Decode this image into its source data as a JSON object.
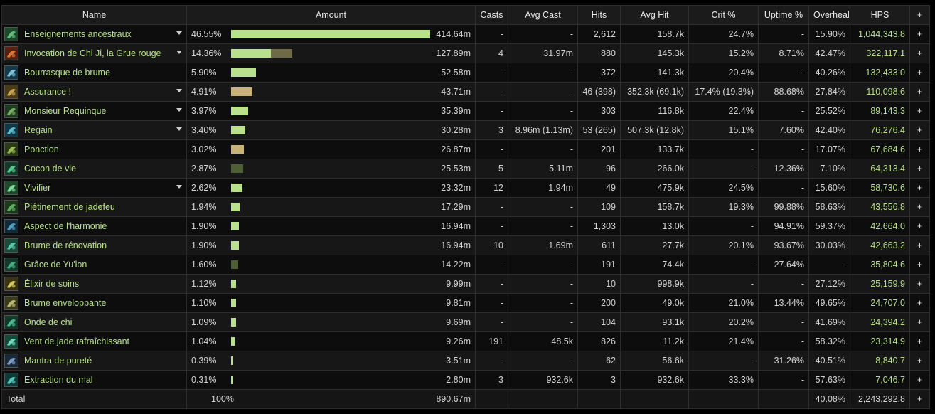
{
  "headers": {
    "name": "Name",
    "amount": "Amount",
    "casts": "Casts",
    "avg_cast": "Avg Cast",
    "hits": "Hits",
    "avg_hit": "Avg Hit",
    "crit": "Crit %",
    "uptime": "Uptime %",
    "overheal": "Overheal",
    "hps": "HPS",
    "plus": "+"
  },
  "colors": {
    "bar_green": "#b9e08c",
    "bar_tan": "#c8b27a",
    "bar_dark": "#4e5f36",
    "bar_olive": "#6f6a46",
    "spell_text": "#b6e08a"
  },
  "rows": [
    {
      "name": "Enseignements ancestraux",
      "icon": "spell-icon-ancestral-teachings",
      "expand": true,
      "pct": "46.55%",
      "bar_fraction": 0.4655,
      "bar_color": "bar_green",
      "bar2_fraction": 0,
      "amount": "414.64m",
      "casts": "-",
      "avg_cast": "-",
      "hits": "2,612",
      "avg_hit": "158.7k",
      "crit": "24.7%",
      "uptime": "-",
      "overheal": "15.90%",
      "hps": "1,044,343.8"
    },
    {
      "name": "Invocation de Chi Ji, la Grue rouge",
      "icon": "spell-icon-chi-ji",
      "expand": true,
      "pct": "14.36%",
      "bar_fraction": 0.0935,
      "bar_color": "bar_green",
      "bar2_fraction": 0.0501,
      "amount": "127.89m",
      "casts": "4",
      "avg_cast": "31.97m",
      "hits": "880",
      "avg_hit": "145.3k",
      "crit": "15.2%",
      "uptime": "8.71%",
      "overheal": "42.47%",
      "hps": "322,117.1"
    },
    {
      "name": "Bourrasque de brume",
      "icon": "spell-icon-gust-of-mists",
      "expand": false,
      "pct": "5.90%",
      "bar_fraction": 0.059,
      "bar_color": "bar_green",
      "bar2_fraction": 0,
      "amount": "52.58m",
      "casts": "-",
      "avg_cast": "-",
      "hits": "372",
      "avg_hit": "141.3k",
      "crit": "20.4%",
      "uptime": "-",
      "overheal": "40.26%",
      "hps": "132,433.0"
    },
    {
      "name": "Assurance !",
      "icon": "spell-icon-assurance",
      "expand": true,
      "pct": "4.91%",
      "bar_fraction": 0.0491,
      "bar_color": "bar_tan",
      "bar2_fraction": 0,
      "amount": "43.71m",
      "casts": "-",
      "avg_cast": "-",
      "hits": "46 (398)",
      "avg_hit": "352.3k (69.1k)",
      "crit": "17.4% (19.3%)",
      "uptime": "88.68%",
      "overheal": "27.84%",
      "hps": "110,098.6"
    },
    {
      "name": "Monsieur Requinque",
      "icon": "spell-icon-monsieur-requinque",
      "expand": true,
      "pct": "3.97%",
      "bar_fraction": 0.0397,
      "bar_color": "bar_green",
      "bar2_fraction": 0,
      "amount": "35.39m",
      "casts": "-",
      "avg_cast": "-",
      "hits": "303",
      "avg_hit": "116.8k",
      "crit": "22.4%",
      "uptime": "-",
      "overheal": "25.52%",
      "hps": "89,143.3"
    },
    {
      "name": "Regain",
      "icon": "spell-icon-regain",
      "expand": true,
      "pct": "3.40%",
      "bar_fraction": 0.034,
      "bar_color": "bar_green",
      "bar2_fraction": 0,
      "amount": "30.28m",
      "casts": "3",
      "avg_cast": "8.96m (1.13m)",
      "hits": "53 (265)",
      "avg_hit": "507.3k (12.8k)",
      "crit": "15.1%",
      "uptime": "7.60%",
      "overheal": "42.40%",
      "hps": "76,276.4"
    },
    {
      "name": "Ponction",
      "icon": "spell-icon-ponction",
      "expand": false,
      "pct": "3.02%",
      "bar_fraction": 0.0302,
      "bar_color": "bar_tan",
      "bar2_fraction": 0,
      "amount": "26.87m",
      "casts": "-",
      "avg_cast": "-",
      "hits": "201",
      "avg_hit": "133.7k",
      "crit": "-",
      "uptime": "-",
      "overheal": "17.07%",
      "hps": "67,684.6"
    },
    {
      "name": "Cocon de vie",
      "icon": "spell-icon-life-cocoon",
      "expand": false,
      "pct": "2.87%",
      "bar_fraction": 0.0287,
      "bar_color": "bar_dark",
      "bar2_fraction": 0,
      "amount": "25.53m",
      "casts": "5",
      "avg_cast": "5.11m",
      "hits": "96",
      "avg_hit": "266.0k",
      "crit": "-",
      "uptime": "12.36%",
      "overheal": "7.10%",
      "hps": "64,313.4"
    },
    {
      "name": "Vivifier",
      "icon": "spell-icon-vivify",
      "expand": true,
      "pct": "2.62%",
      "bar_fraction": 0.0262,
      "bar_color": "bar_green",
      "bar2_fraction": 0,
      "amount": "23.32m",
      "casts": "12",
      "avg_cast": "1.94m",
      "hits": "49",
      "avg_hit": "475.9k",
      "crit": "24.5%",
      "uptime": "-",
      "overheal": "15.60%",
      "hps": "58,730.6"
    },
    {
      "name": "Piétinement de jadefeu",
      "icon": "spell-icon-jadefire-stomp",
      "expand": false,
      "pct": "1.94%",
      "bar_fraction": 0.0194,
      "bar_color": "bar_green",
      "bar2_fraction": 0,
      "amount": "17.29m",
      "casts": "-",
      "avg_cast": "-",
      "hits": "109",
      "avg_hit": "158.7k",
      "crit": "19.3%",
      "uptime": "99.88%",
      "overheal": "58.63%",
      "hps": "43,556.8"
    },
    {
      "name": "Aspect de l'harmonie",
      "icon": "spell-icon-aspect-of-harmony",
      "expand": false,
      "pct": "1.90%",
      "bar_fraction": 0.019,
      "bar_color": "bar_green",
      "bar2_fraction": 0,
      "amount": "16.94m",
      "casts": "-",
      "avg_cast": "-",
      "hits": "1,303",
      "avg_hit": "13.0k",
      "crit": "-",
      "uptime": "94.91%",
      "overheal": "59.37%",
      "hps": "42,664.0"
    },
    {
      "name": "Brume de rénovation",
      "icon": "spell-icon-renewing-mist",
      "expand": false,
      "pct": "1.90%",
      "bar_fraction": 0.019,
      "bar_color": "bar_green",
      "bar2_fraction": 0,
      "amount": "16.94m",
      "casts": "10",
      "avg_cast": "1.69m",
      "hits": "611",
      "avg_hit": "27.7k",
      "crit": "20.1%",
      "uptime": "93.67%",
      "overheal": "30.03%",
      "hps": "42,663.2"
    },
    {
      "name": "Grâce de Yu'lon",
      "icon": "spell-icon-yulon-grace",
      "expand": false,
      "pct": "1.60%",
      "bar_fraction": 0.016,
      "bar_color": "bar_dark",
      "bar2_fraction": 0,
      "amount": "14.22m",
      "casts": "-",
      "avg_cast": "-",
      "hits": "191",
      "avg_hit": "74.4k",
      "crit": "-",
      "uptime": "27.64%",
      "overheal": "-",
      "hps": "35,804.6"
    },
    {
      "name": "Élixir de soins",
      "icon": "spell-icon-healing-elixir",
      "expand": false,
      "pct": "1.12%",
      "bar_fraction": 0.0112,
      "bar_color": "bar_green",
      "bar2_fraction": 0,
      "amount": "9.99m",
      "casts": "-",
      "avg_cast": "-",
      "hits": "10",
      "avg_hit": "998.9k",
      "crit": "-",
      "uptime": "-",
      "overheal": "27.12%",
      "hps": "25,159.9"
    },
    {
      "name": "Brume enveloppante",
      "icon": "spell-icon-enveloping-mist",
      "expand": false,
      "pct": "1.10%",
      "bar_fraction": 0.011,
      "bar_color": "bar_green",
      "bar2_fraction": 0,
      "amount": "9.81m",
      "casts": "-",
      "avg_cast": "-",
      "hits": "200",
      "avg_hit": "49.0k",
      "crit": "21.0%",
      "uptime": "13.44%",
      "overheal": "49.65%",
      "hps": "24,707.0"
    },
    {
      "name": "Onde de chi",
      "icon": "spell-icon-chi-wave",
      "expand": false,
      "pct": "1.09%",
      "bar_fraction": 0.0109,
      "bar_color": "bar_green",
      "bar2_fraction": 0,
      "amount": "9.69m",
      "casts": "-",
      "avg_cast": "-",
      "hits": "104",
      "avg_hit": "93.1k",
      "crit": "20.2%",
      "uptime": "-",
      "overheal": "41.69%",
      "hps": "24,394.2"
    },
    {
      "name": "Vent de jade rafraîchissant",
      "icon": "spell-icon-refreshing-jade-wind",
      "expand": false,
      "pct": "1.04%",
      "bar_fraction": 0.0104,
      "bar_color": "bar_green",
      "bar2_fraction": 0,
      "amount": "9.26m",
      "casts": "191",
      "avg_cast": "48.5k",
      "hits": "826",
      "avg_hit": "11.2k",
      "crit": "21.4%",
      "uptime": "-",
      "overheal": "58.32%",
      "hps": "23,314.9"
    },
    {
      "name": "Mantra de pureté",
      "icon": "spell-icon-mantra-of-purity",
      "expand": false,
      "pct": "0.39%",
      "bar_fraction": 0.0039,
      "bar_color": "bar_green",
      "bar2_fraction": 0,
      "amount": "3.51m",
      "casts": "-",
      "avg_cast": "-",
      "hits": "62",
      "avg_hit": "56.6k",
      "crit": "-",
      "uptime": "31.26%",
      "overheal": "40.51%",
      "hps": "8,840.7"
    },
    {
      "name": "Extraction du mal",
      "icon": "spell-icon-extract-of-evil",
      "expand": false,
      "pct": "0.31%",
      "bar_fraction": 0.0031,
      "bar_color": "bar_green",
      "bar2_fraction": 0,
      "amount": "2.80m",
      "casts": "3",
      "avg_cast": "932.6k",
      "hits": "3",
      "avg_hit": "932.6k",
      "crit": "33.3%",
      "uptime": "-",
      "overheal": "57.63%",
      "hps": "7,046.7"
    }
  ],
  "total": {
    "label": "Total",
    "pct": "100%",
    "amount": "890.67m",
    "overheal": "40.08%",
    "hps": "2,243,292.8",
    "plus": "+"
  }
}
